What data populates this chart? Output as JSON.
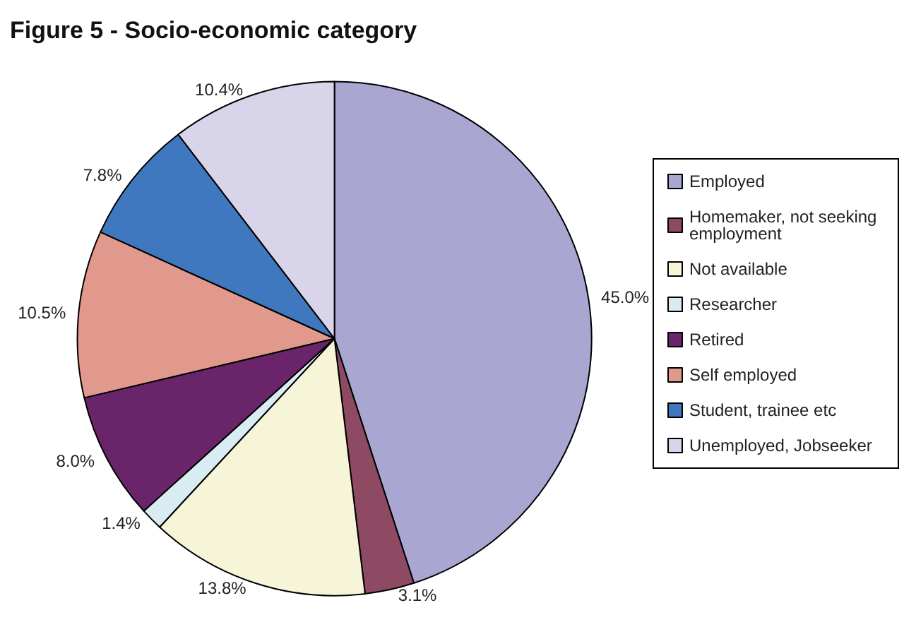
{
  "chart_data": {
    "type": "pie",
    "title": "Figure 5 - Socio-economic category",
    "categories": [
      "Employed",
      "Homemaker, not seeking employment",
      "Not available",
      "Researcher",
      "Retired",
      "Self employed",
      "Student, trainee etc",
      "Unemployed, Jobseeker"
    ],
    "values": [
      45.0,
      3.1,
      13.8,
      1.4,
      8.0,
      10.5,
      7.8,
      10.4
    ],
    "value_labels": [
      "45.0%",
      "3.1%",
      "13.8%",
      "1.4%",
      "8.0%",
      "10.5%",
      "7.8%",
      "10.4%"
    ],
    "colors": [
      "#a9a6d2",
      "#8f4a63",
      "#f6f5d8",
      "#d8ecf2",
      "#6a2469",
      "#e0998c",
      "#3f78bf",
      "#d8d5ea"
    ],
    "legend": "right"
  }
}
